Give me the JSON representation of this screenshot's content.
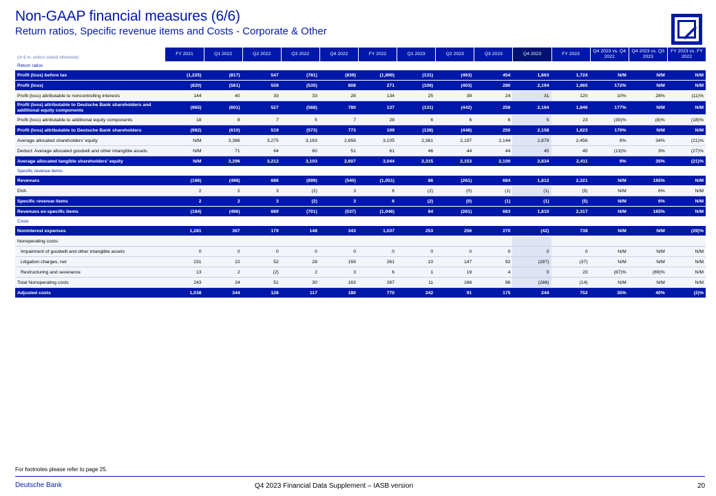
{
  "header": {
    "title": "Non-GAAP financial measures (6/6)",
    "subtitle": "Return ratios, Specific revenue items and Costs - Corporate & Other"
  },
  "colors": {
    "brand": "#0018a8",
    "highlight": "#001270"
  },
  "table": {
    "unit": "(In € m, unless stated otherwise)",
    "columns": [
      "FY 2021",
      "Q1 2022",
      "Q2 2022",
      "Q3 2022",
      "Q4 2022",
      "FY 2022",
      "Q1 2023",
      "Q2 2023",
      "Q3 2023",
      "Q4 2023",
      "FY 2023",
      "Q4 2023 vs. Q4 2022",
      "Q4 2023 vs. Q3 2023",
      "FY 2023 vs. FY 2022"
    ],
    "rows": [
      {
        "type": "sec",
        "label": "Return ratios"
      },
      {
        "type": "bold",
        "label": "Profit (loss) before tax",
        "values": [
          "(1,225)",
          "(817)",
          "547",
          "(781)",
          "(839)",
          "(1,890)",
          "(131)",
          "(463)",
          "454",
          "1,863",
          "1,724",
          "N/M",
          "N/M",
          "N/M"
        ]
      },
      {
        "type": "bold",
        "label": "Profit (loss)",
        "values": [
          "(820)",
          "(561)",
          "559",
          "(535)",
          "808",
          "271",
          "(106)",
          "(403)",
          "280",
          "2,194",
          "1,965",
          "172%",
          "N/M",
          "N/M"
        ]
      },
      {
        "type": "plain",
        "label": "Profit (loss) attributable to noncontrolling interests",
        "values": [
          "144",
          "40",
          "33",
          "33",
          "28",
          "134",
          "25",
          "39",
          "24",
          "31",
          "120",
          "10%",
          "28%",
          "(11)%"
        ]
      },
      {
        "type": "bold",
        "tall": true,
        "label": "Profit (loss) attributable to Deutsche Bank shareholders and additional equity components",
        "values": [
          "(965)",
          "(601)",
          "527",
          "(568)",
          "780",
          "137",
          "(131)",
          "(442)",
          "256",
          "2,164",
          "1,846",
          "177%",
          "N/M",
          "N/M"
        ]
      },
      {
        "type": "plain",
        "label": "Profit (loss) attributable to additional equity components",
        "values": [
          "18",
          "8",
          "7",
          "5",
          "7",
          "28",
          "6",
          "6",
          "6",
          "5",
          "23",
          "(30)%",
          "(8)%",
          "(18)%"
        ]
      },
      {
        "type": "bold",
        "label": "Profit (loss) attributable to Deutsche Bank shareholders",
        "values": [
          "(982)",
          "(610)",
          "519",
          "(573)",
          "773",
          "109",
          "(138)",
          "(448)",
          "250",
          "2,158",
          "1,823",
          "179%",
          "N/M",
          "N/M"
        ]
      },
      {
        "type": "plain",
        "label": "Average allocated shareholders' equity",
        "values": [
          "N/M",
          "3,366",
          "3,275",
          "3,163",
          "2,658",
          "3,105",
          "2,361",
          "2,197",
          "2,144",
          "2,879",
          "2,456",
          "8%",
          "34%",
          "(21)%"
        ]
      },
      {
        "type": "plain",
        "label": "Deduct: Average allocated goodwill and other intangible assets",
        "values": [
          "N/M",
          "71",
          "64",
          "60",
          "51",
          "61",
          "46",
          "44",
          "44",
          "45",
          "45",
          "(13)%",
          "3%",
          "(27)%"
        ]
      },
      {
        "type": "bold",
        "label": "Average allocated tangible shareholders' equity",
        "values": [
          "N/M",
          "3,296",
          "3,212",
          "3,103",
          "2,607",
          "3,044",
          "2,315",
          "2,153",
          "2,100",
          "2,834",
          "2,411",
          "9%",
          "35%",
          "(21)%"
        ]
      },
      {
        "type": "sec",
        "label": "Specific revenue items:"
      },
      {
        "type": "bold",
        "label": "Revenues",
        "values": [
          "(186)",
          "(498)",
          "686",
          "(699)",
          "(540)",
          "(1,051)",
          "86",
          "(261)",
          "684",
          "1,812",
          "2,321",
          "N/M",
          "165%",
          "N/M"
        ]
      },
      {
        "type": "plain",
        "label": "DVA",
        "values": [
          "2",
          "2",
          "3",
          "(2)",
          "3",
          "6",
          "(2)",
          "(0)",
          "(1)",
          "(1)",
          "(5)",
          "N/M",
          "6%",
          "N/M"
        ]
      },
      {
        "type": "bold",
        "label": "Specific revenue items",
        "values": [
          "2",
          "2",
          "3",
          "(2)",
          "3",
          "6",
          "(2)",
          "(0)",
          "(1)",
          "(1)",
          "(5)",
          "N/M",
          "6%",
          "N/M"
        ]
      },
      {
        "type": "bold",
        "label": "Revenues ex-specific items",
        "values": [
          "(184)",
          "(496)",
          "689",
          "(701)",
          "(537)",
          "(1,046)",
          "84",
          "(261)",
          "683",
          "1,810",
          "2,317",
          "N/M",
          "165%",
          "N/M"
        ]
      },
      {
        "type": "sec",
        "label": "Costs"
      },
      {
        "type": "bold",
        "label": "Noninterest expenses",
        "values": [
          "1,281",
          "367",
          "179",
          "148",
          "343",
          "1,037",
          "253",
          "256",
          "270",
          "(42)",
          "738",
          "N/M",
          "N/M",
          "(29)%"
        ]
      },
      {
        "type": "plain",
        "label": "Nonoperating costs:",
        "values": [
          "",
          "",
          "",
          "",
          "",
          "",
          "",
          "",
          "",
          "",
          "",
          "",
          "",
          ""
        ]
      },
      {
        "type": "plain",
        "indent": true,
        "label": "Impairment of goodwill and other intangible assets",
        "values": [
          "0",
          "0",
          "0",
          "0",
          "0",
          "0",
          "0",
          "0",
          "0",
          "0",
          "0",
          "N/M",
          "N/M",
          "N/M"
        ]
      },
      {
        "type": "plain",
        "indent": true,
        "label": "Litigation charges, net",
        "values": [
          "231",
          "22",
          "52",
          "28",
          "159",
          "261",
          "10",
          "147",
          "92",
          "(287)",
          "(37)",
          "N/M",
          "N/M",
          "N/M"
        ]
      },
      {
        "type": "plain",
        "indent": true,
        "label": "Restructuring and severance",
        "values": [
          "13",
          "2",
          "(2)",
          "2",
          "3",
          "6",
          "1",
          "19",
          "4",
          "0",
          "23",
          "(87)%",
          "(89)%",
          "N/M"
        ]
      },
      {
        "type": "plain",
        "label": "Total Nonoperating costs",
        "values": [
          "243",
          "24",
          "51",
          "30",
          "163",
          "267",
          "11",
          "166",
          "96",
          "(286)",
          "(14)",
          "N/M",
          "N/M",
          "N/M"
        ]
      },
      {
        "type": "bold",
        "label": "Adjusted costs",
        "values": [
          "1,038",
          "344",
          "128",
          "117",
          "180",
          "770",
          "242",
          "91",
          "175",
          "244",
          "752",
          "35%",
          "40%",
          "(2)%"
        ]
      }
    ]
  },
  "footer": {
    "footnote": "For footnotes please refer to page 25.",
    "brand": "Deutsche Bank",
    "document": "Q4 2023 Financial Data Supplement – IASB version",
    "page": "20"
  }
}
